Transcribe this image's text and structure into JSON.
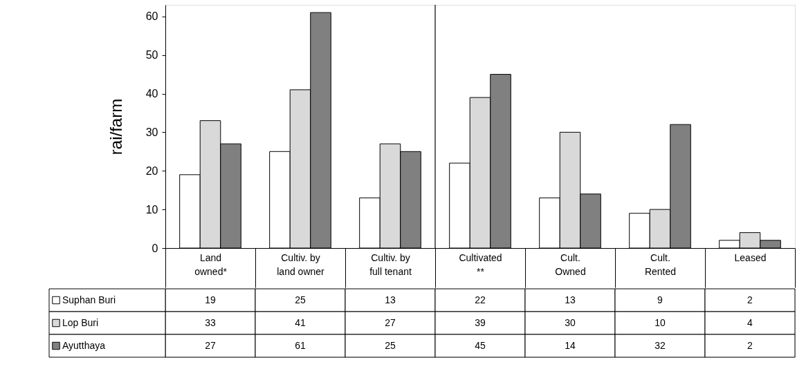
{
  "chart_data": {
    "type": "bar",
    "ylabel": "rai/farm",
    "categories": [
      "Land\nowned*",
      "Cultiv. by\nland owner",
      "Cultiv. by\nfull tenant",
      "Cultivated\n**",
      "Cult.\nOwned",
      "Cult.\nRented",
      "Leased"
    ],
    "series": [
      {
        "name": "Suphan Buri",
        "color": "#ffffff",
        "values": [
          19,
          25,
          13,
          22,
          13,
          9,
          2
        ]
      },
      {
        "name": "Lop Buri",
        "color": "#d9d9d9",
        "values": [
          33,
          41,
          27,
          39,
          30,
          10,
          4
        ]
      },
      {
        "name": "Ayutthaya",
        "color": "#808080",
        "values": [
          27,
          61,
          25,
          45,
          14,
          32,
          2
        ]
      }
    ],
    "ylim": [
      0,
      63
    ],
    "yticks": [
      0,
      10,
      20,
      30,
      40,
      50,
      60
    ],
    "grid": false,
    "data_labels": true,
    "legend": "bottom left"
  }
}
